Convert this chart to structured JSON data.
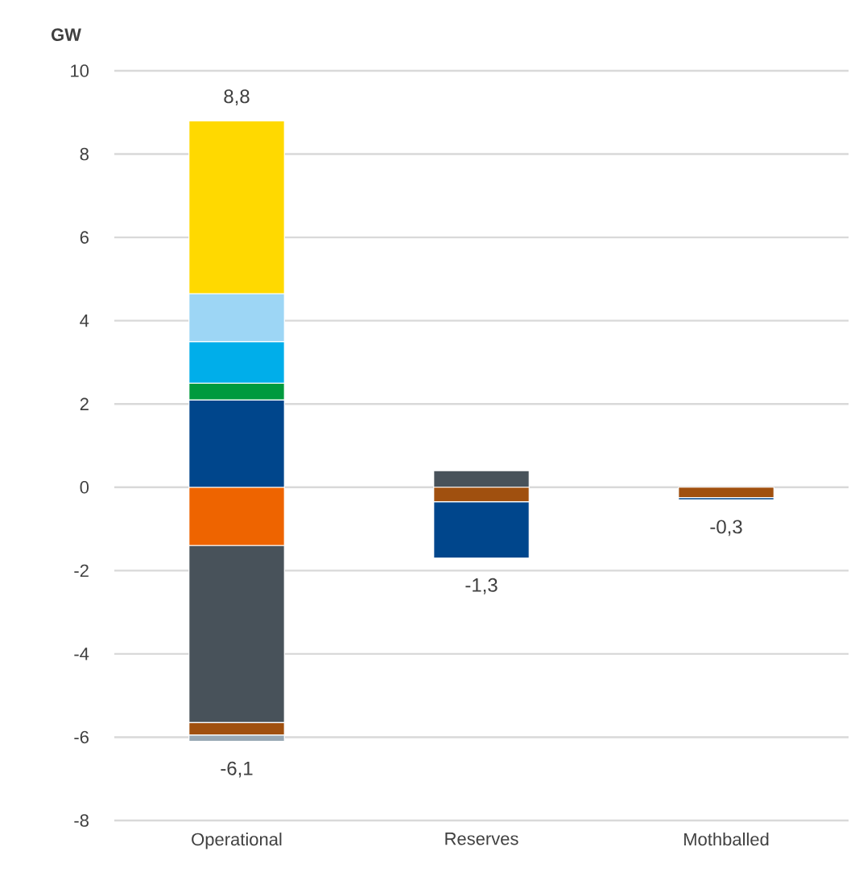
{
  "chart_data": {
    "type": "bar",
    "stacked": true,
    "ylabel": "GW",
    "categories": [
      "Operational",
      "Reserves",
      "Mothballed"
    ],
    "series": [
      {
        "color": "#ee6400",
        "values": [
          -1.4,
          null,
          null
        ]
      },
      {
        "color": "#48525a",
        "values": [
          -4.25,
          0.4,
          null
        ]
      },
      {
        "color": "#a0500f",
        "values": [
          -0.3,
          -0.35,
          -0.25
        ]
      },
      {
        "color": "#98a8b4",
        "values": [
          -0.15,
          null,
          null
        ]
      },
      {
        "color": "#00468c",
        "values": [
          2.1,
          -1.35,
          -0.05
        ]
      },
      {
        "color": "#009a3e",
        "values": [
          0.4,
          null,
          null
        ]
      },
      {
        "color": "#00aeea",
        "values": [
          1.0,
          null,
          null
        ]
      },
      {
        "color": "#9dd6f5",
        "values": [
          1.15,
          null,
          null
        ]
      },
      {
        "color": "#ffd900",
        "values": [
          4.15,
          null,
          null
        ]
      }
    ],
    "ylim": [
      -8,
      10
    ],
    "yticks": [
      -8,
      -6,
      -4,
      -2,
      0,
      2,
      4,
      6,
      8,
      10
    ],
    "grid": "y",
    "annotations": [
      {
        "text": "8,8",
        "x": "Operational",
        "y": 8.8
      },
      {
        "text": "-6,1",
        "x": "Operational",
        "y": -6.1
      },
      {
        "text": "-1,3",
        "x": "Reserves",
        "y": -1.7
      },
      {
        "text": "-0,3",
        "x": "Mothballed",
        "y": -0.3
      }
    ]
  }
}
